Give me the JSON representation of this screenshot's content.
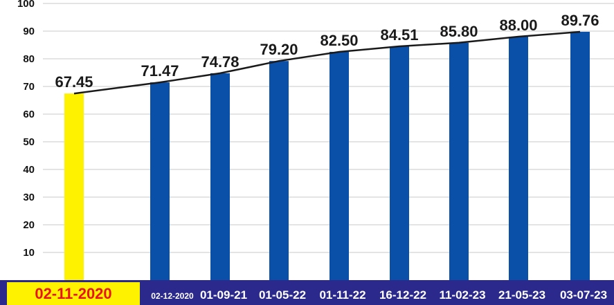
{
  "chart_data": {
    "type": "bar",
    "categories": [
      "02-11-2020",
      "02-12-2020",
      "01-09-21",
      "01-05-22",
      "01-11-22",
      "16-12-22",
      "11-02-23",
      "21-05-23",
      "03-07-23"
    ],
    "series": [
      {
        "values": [
          67.45,
          71.47,
          74.78,
          79.2,
          82.5,
          84.51,
          85.8,
          88.0,
          89.76
        ]
      }
    ],
    "data_labels": [
      "67.45",
      "71.47",
      "74.78",
      "79.20",
      "82.50",
      "84.51",
      "85.80",
      "88.00",
      "89.76"
    ],
    "trend_line": true,
    "ylim": [
      0,
      100
    ],
    "yticks": [
      10,
      20,
      30,
      40,
      50,
      60,
      70,
      80,
      90,
      100
    ],
    "grid": true,
    "colors": {
      "highlight_bar": "#fff200",
      "bar": "#0a4fa8",
      "axis_band": "#2b2a8c",
      "highlight_label_box": "#fff200",
      "highlight_label_text": "#e8141b",
      "trend_line": "#1a1a1a",
      "grid": "#c8c8c8"
    }
  }
}
